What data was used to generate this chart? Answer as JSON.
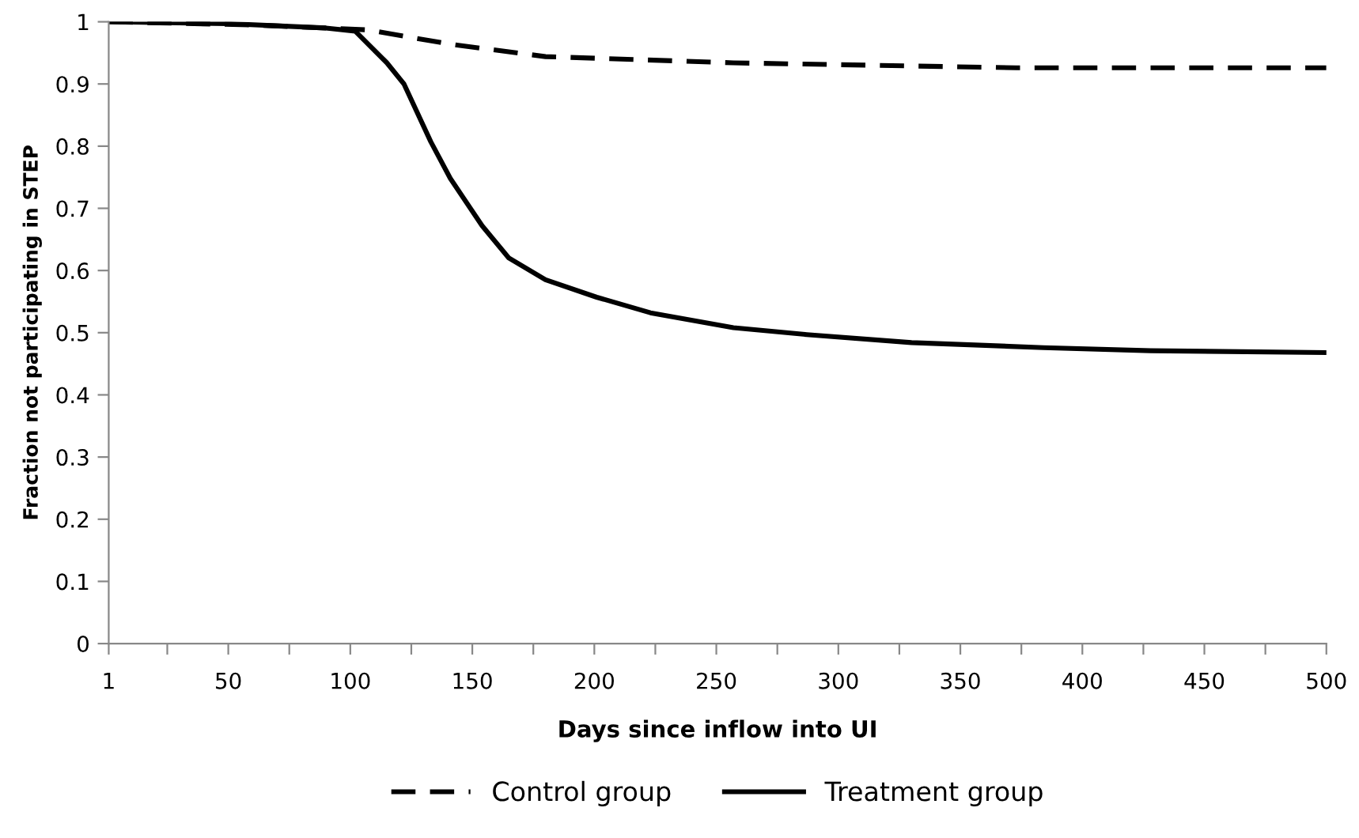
{
  "chart_data": {
    "type": "line",
    "xlabel": "Days since inflow into UI",
    "ylabel": "Fraction not participating in STEP",
    "xlim": [
      1,
      500
    ],
    "ylim": [
      0,
      1
    ],
    "xticks": [
      1,
      {
        "value": 25,
        "label": null
      },
      50,
      {
        "value": 75,
        "label": null
      },
      100,
      {
        "value": 125,
        "label": null
      },
      150,
      {
        "value": 175,
        "label": null
      },
      200,
      {
        "value": 225,
        "label": null
      },
      250,
      {
        "value": 275,
        "label": null
      },
      300,
      {
        "value": 325,
        "label": null
      },
      350,
      {
        "value": 375,
        "label": null
      },
      400,
      {
        "value": 425,
        "label": null
      },
      450,
      {
        "value": 475,
        "label": null
      },
      500
    ],
    "yticks": [
      0,
      0.1,
      0.2,
      0.3,
      0.4,
      0.5,
      0.6,
      0.7,
      0.8,
      0.9,
      1
    ],
    "grid": false,
    "legend": "bottom",
    "marker": "none",
    "series": [
      {
        "name": "Control group",
        "color": "#000000",
        "line_style": "dashed",
        "x": [
          1,
          60,
          107,
          141,
          180,
          257,
          373,
          500
        ],
        "values": [
          1.0,
          0.995,
          0.987,
          0.964,
          0.944,
          0.934,
          0.926,
          0.926
        ]
      },
      {
        "name": "Treatment group",
        "color": "#000000",
        "line_style": "solid",
        "x": [
          1,
          50,
          90,
          102,
          115,
          122,
          133,
          141,
          154,
          165,
          180,
          201,
          223,
          257,
          287,
          330,
          384,
          428,
          500
        ],
        "values": [
          1.0,
          0.997,
          0.99,
          0.985,
          0.934,
          0.9,
          0.807,
          0.748,
          0.672,
          0.62,
          0.585,
          0.557,
          0.532,
          0.508,
          0.497,
          0.484,
          0.476,
          0.471,
          0.468
        ]
      }
    ]
  }
}
